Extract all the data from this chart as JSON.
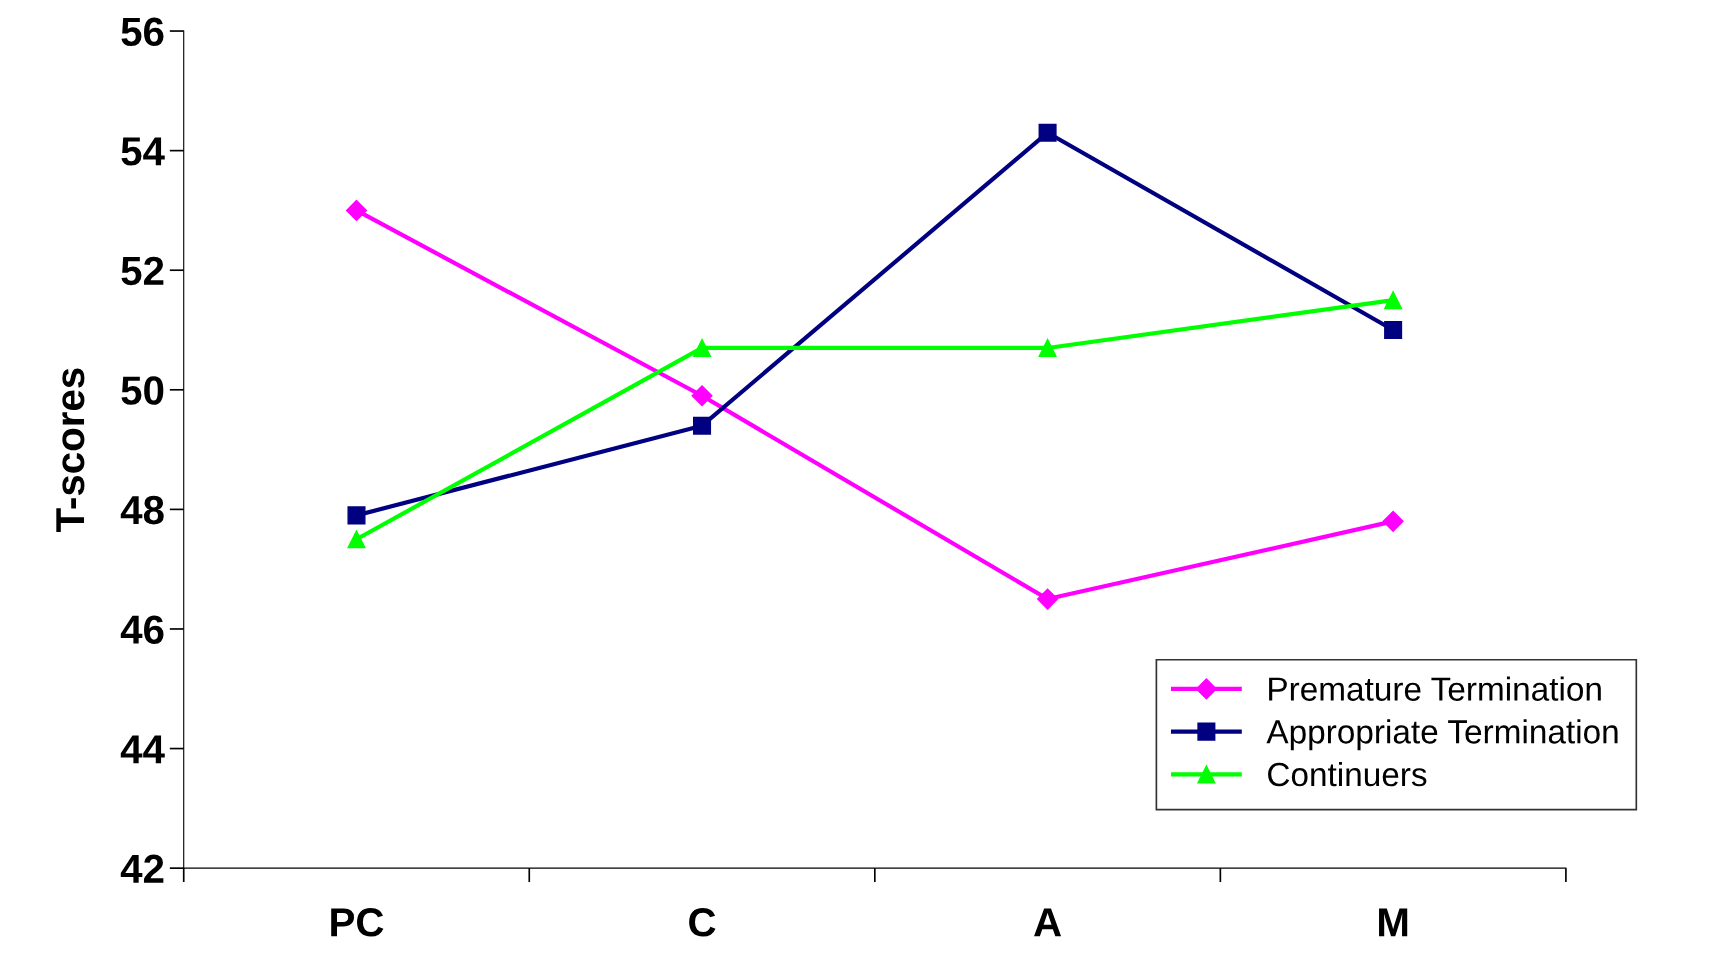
{
  "chart_data": {
    "type": "line",
    "ylabel": "T-scores",
    "categories": [
      "PC",
      "C",
      "A",
      "M"
    ],
    "series": [
      {
        "name": "Premature Termination",
        "color": "#ff00ff",
        "marker": "diamond",
        "values": [
          53.0,
          49.9,
          46.5,
          47.8
        ]
      },
      {
        "name": "Appropriate Termination",
        "color": "#000080",
        "marker": "square",
        "values": [
          47.9,
          49.4,
          54.3,
          51.0
        ]
      },
      {
        "name": "Continuers",
        "color": "#00ff00",
        "marker": "triangle",
        "values": [
          47.5,
          50.7,
          50.7,
          51.5
        ]
      }
    ],
    "ylim": [
      42,
      56
    ],
    "yticks": [
      42,
      44,
      46,
      48,
      50,
      52,
      54,
      56
    ],
    "grid": false,
    "legend": "bottom right",
    "line_style": "solid"
  }
}
